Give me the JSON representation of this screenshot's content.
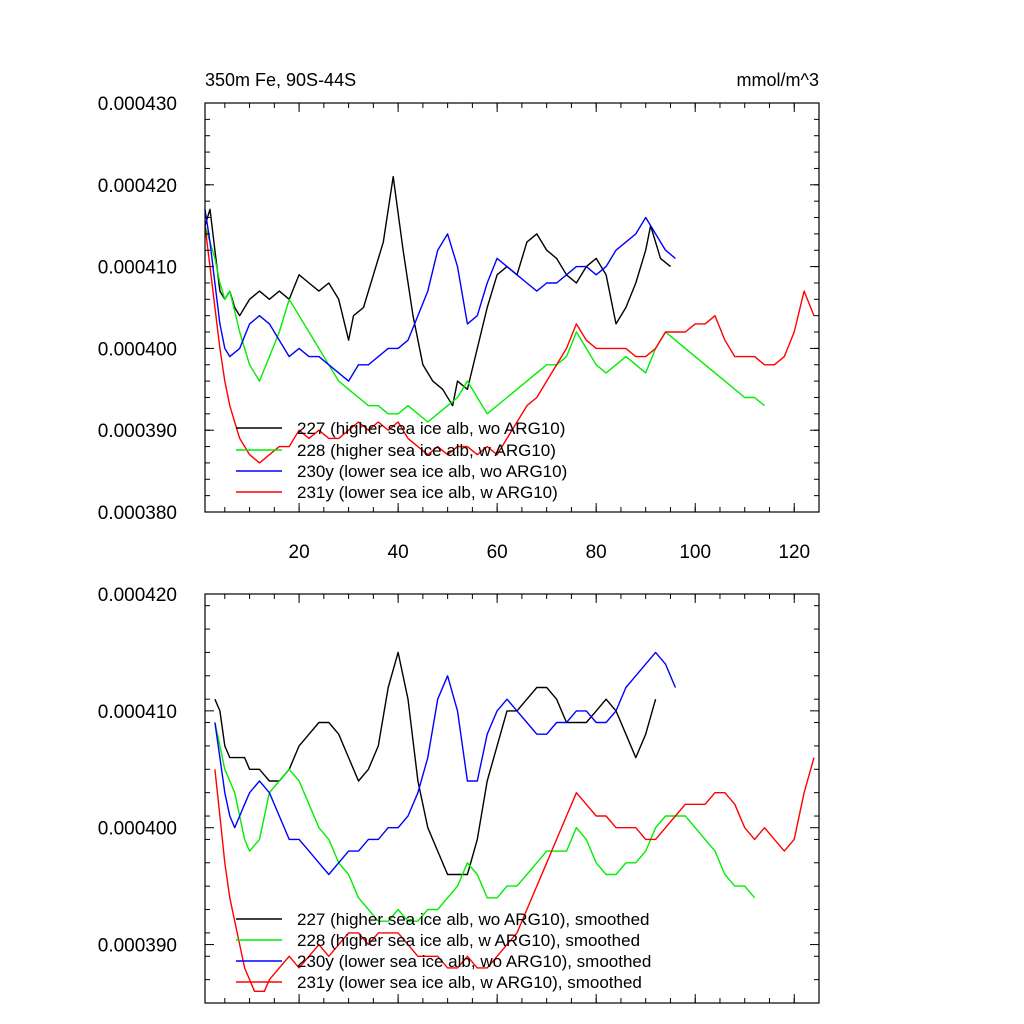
{
  "chart_data": [
    {
      "type": "line",
      "title": "350m Fe, 90S-44S",
      "units": "mmol/m^3",
      "xlim": [
        1,
        125
      ],
      "ylim": [
        0.00038,
        0.00043
      ],
      "xticks": [
        20,
        40,
        60,
        80,
        100,
        120
      ],
      "xtick_labels": [
        "20",
        "40",
        "60",
        "80",
        "100",
        "120"
      ],
      "yticks": [
        0.00038,
        0.00039,
        0.0004,
        0.00041,
        0.00042,
        0.00043
      ],
      "ytick_labels": [
        "0.000380",
        "0.000390",
        "0.000400",
        "0.000410",
        "0.000420",
        "0.000430"
      ],
      "legend_position": "bottom-left",
      "grid": false,
      "series": [
        {
          "name": "227 (higher sea ice alb, wo ARG10)",
          "color": "#000000",
          "x": [
            1,
            2,
            3,
            4,
            5,
            6,
            7,
            8,
            9,
            10,
            12,
            14,
            16,
            18,
            20,
            22,
            24,
            26,
            28,
            30,
            31,
            33,
            35,
            37,
            39,
            41,
            43,
            45,
            47,
            49,
            51,
            52,
            54,
            56,
            58,
            60,
            62,
            64,
            66,
            68,
            70,
            72,
            74,
            76,
            78,
            80,
            82,
            84,
            86,
            88,
            90,
            91,
            93,
            95
          ],
          "y": [
            0.000415,
            0.000417,
            0.000412,
            0.000407,
            0.000406,
            0.000407,
            0.000405,
            0.000404,
            0.000405,
            0.000406,
            0.000407,
            0.000406,
            0.000407,
            0.000406,
            0.000409,
            0.000408,
            0.000407,
            0.000408,
            0.000406,
            0.000401,
            0.000404,
            0.000405,
            0.000409,
            0.000413,
            0.000421,
            0.000412,
            0.000404,
            0.000398,
            0.000396,
            0.000395,
            0.000393,
            0.000396,
            0.000395,
            0.0004,
            0.000405,
            0.000409,
            0.00041,
            0.000409,
            0.000413,
            0.000414,
            0.000412,
            0.000411,
            0.000409,
            0.000408,
            0.00041,
            0.000411,
            0.000409,
            0.000403,
            0.000405,
            0.000408,
            0.000412,
            0.000415,
            0.000411,
            0.00041
          ]
        },
        {
          "name": "228 (higher sea ice alb, w ARG10)",
          "color": "#00ee00",
          "x": [
            1,
            2,
            3,
            4,
            5,
            6,
            8,
            10,
            12,
            14,
            16,
            18,
            20,
            22,
            24,
            26,
            28,
            30,
            32,
            34,
            36,
            38,
            40,
            42,
            44,
            46,
            48,
            50,
            52,
            54,
            56,
            58,
            60,
            62,
            64,
            66,
            68,
            70,
            72,
            74,
            76,
            78,
            80,
            82,
            84,
            86,
            88,
            90,
            92,
            94,
            96,
            98,
            100,
            102,
            104,
            106,
            108,
            110,
            112,
            114
          ],
          "y": [
            0.000415,
            0.000413,
            0.000411,
            0.000408,
            0.000406,
            0.000407,
            0.000402,
            0.000398,
            0.000396,
            0.000399,
            0.000402,
            0.000406,
            0.000404,
            0.000402,
            0.0004,
            0.000398,
            0.000396,
            0.000395,
            0.000394,
            0.000393,
            0.000393,
            0.000392,
            0.000392,
            0.000393,
            0.000392,
            0.000391,
            0.000392,
            0.000393,
            0.000394,
            0.000396,
            0.000394,
            0.000392,
            0.000393,
            0.000394,
            0.000395,
            0.000396,
            0.000397,
            0.000398,
            0.000398,
            0.000399,
            0.000402,
            0.0004,
            0.000398,
            0.000397,
            0.000398,
            0.000399,
            0.000398,
            0.000397,
            0.0004,
            0.000402,
            0.000401,
            0.0004,
            0.000399,
            0.000398,
            0.000397,
            0.000396,
            0.000395,
            0.000394,
            0.000394,
            0.000393
          ]
        },
        {
          "name": "230y (lower sea ice alb, wo ARG10)",
          "color": "#0000ff",
          "x": [
            1,
            2,
            3,
            4,
            5,
            6,
            8,
            10,
            12,
            14,
            16,
            18,
            20,
            22,
            24,
            26,
            28,
            30,
            32,
            34,
            36,
            38,
            40,
            42,
            44,
            46,
            48,
            50,
            52,
            54,
            56,
            58,
            60,
            62,
            64,
            66,
            68,
            70,
            72,
            74,
            76,
            78,
            80,
            82,
            84,
            86,
            88,
            90,
            92,
            94,
            96
          ],
          "y": [
            0.000417,
            0.000413,
            0.000408,
            0.000403,
            0.0004,
            0.000399,
            0.0004,
            0.000403,
            0.000404,
            0.000403,
            0.000401,
            0.000399,
            0.0004,
            0.000399,
            0.000399,
            0.000398,
            0.000397,
            0.000396,
            0.000398,
            0.000398,
            0.000399,
            0.0004,
            0.0004,
            0.000401,
            0.000404,
            0.000407,
            0.000412,
            0.000414,
            0.00041,
            0.000403,
            0.000404,
            0.000408,
            0.000411,
            0.00041,
            0.000409,
            0.000408,
            0.000407,
            0.000408,
            0.000408,
            0.000409,
            0.00041,
            0.00041,
            0.000409,
            0.00041,
            0.000412,
            0.000413,
            0.000414,
            0.000416,
            0.000414,
            0.000412,
            0.000411
          ]
        },
        {
          "name": "231y (lower sea ice alb, w ARG10)",
          "color": "#ff0000",
          "x": [
            1,
            2,
            3,
            4,
            5,
            6,
            7,
            8,
            10,
            12,
            14,
            16,
            18,
            20,
            22,
            24,
            26,
            28,
            30,
            32,
            34,
            36,
            38,
            40,
            42,
            44,
            46,
            48,
            50,
            52,
            54,
            56,
            58,
            60,
            62,
            64,
            66,
            68,
            70,
            72,
            74,
            76,
            78,
            80,
            82,
            84,
            86,
            88,
            90,
            92,
            94,
            96,
            98,
            100,
            102,
            104,
            106,
            108,
            110,
            112,
            114,
            116,
            118,
            120,
            122,
            124
          ],
          "y": [
            0.000415,
            0.00041,
            0.000405,
            0.0004,
            0.000396,
            0.000393,
            0.000391,
            0.000389,
            0.000387,
            0.000386,
            0.000387,
            0.000388,
            0.000388,
            0.00039,
            0.000389,
            0.00039,
            0.000389,
            0.000389,
            0.00039,
            0.000391,
            0.00039,
            0.000391,
            0.00039,
            0.000391,
            0.000389,
            0.000388,
            0.000387,
            0.000388,
            0.000387,
            0.000388,
            0.000388,
            0.000387,
            0.000388,
            0.000387,
            0.000389,
            0.000391,
            0.000393,
            0.000394,
            0.000396,
            0.000398,
            0.0004,
            0.000403,
            0.000401,
            0.0004,
            0.0004,
            0.0004,
            0.0004,
            0.000399,
            0.000399,
            0.0004,
            0.000402,
            0.000402,
            0.000402,
            0.000403,
            0.000403,
            0.000404,
            0.000401,
            0.000399,
            0.000399,
            0.000399,
            0.000398,
            0.000398,
            0.000399,
            0.000402,
            0.000407,
            0.000404
          ]
        }
      ]
    },
    {
      "type": "line",
      "title": "",
      "xlim": [
        1,
        125
      ],
      "ylim": [
        0.000385,
        0.00042
      ],
      "xticks": [
        20,
        40,
        60,
        80,
        100,
        120
      ],
      "yticks": [
        0.00039,
        0.0004,
        0.00041,
        0.00042
      ],
      "ytick_labels": [
        "0.000390",
        "0.000400",
        "0.000410",
        "0.000420"
      ],
      "legend_position": "bottom-left",
      "grid": false,
      "series": [
        {
          "name": "227 (higher sea ice alb, wo ARG10), smoothed",
          "color": "#000000",
          "x": [
            3,
            4,
            5,
            6,
            7,
            8,
            9,
            10,
            12,
            14,
            16,
            18,
            20,
            22,
            24,
            26,
            28,
            30,
            32,
            34,
            36,
            38,
            40,
            42,
            44,
            46,
            48,
            50,
            52,
            54,
            56,
            58,
            60,
            62,
            64,
            66,
            68,
            70,
            72,
            74,
            76,
            78,
            80,
            82,
            84,
            86,
            88,
            90,
            92
          ],
          "y": [
            0.000411,
            0.00041,
            0.000407,
            0.000406,
            0.000406,
            0.000406,
            0.000406,
            0.000405,
            0.000405,
            0.000404,
            0.000404,
            0.000405,
            0.000407,
            0.000408,
            0.000409,
            0.000409,
            0.000408,
            0.000406,
            0.000404,
            0.000405,
            0.000407,
            0.000412,
            0.000415,
            0.000411,
            0.000404,
            0.0004,
            0.000398,
            0.000396,
            0.000396,
            0.000396,
            0.000399,
            0.000404,
            0.000407,
            0.00041,
            0.00041,
            0.000411,
            0.000412,
            0.000412,
            0.000411,
            0.000409,
            0.000409,
            0.000409,
            0.00041,
            0.000411,
            0.00041,
            0.000408,
            0.000406,
            0.000408,
            0.000411
          ]
        },
        {
          "name": "228 (higher sea ice alb, w ARG10), smoothed",
          "color": "#00ee00",
          "x": [
            3,
            4,
            5,
            6,
            7,
            8,
            9,
            10,
            12,
            14,
            16,
            18,
            20,
            22,
            24,
            26,
            28,
            30,
            32,
            34,
            36,
            38,
            40,
            42,
            44,
            46,
            48,
            50,
            52,
            54,
            56,
            58,
            60,
            62,
            64,
            66,
            68,
            70,
            72,
            74,
            76,
            78,
            80,
            82,
            84,
            86,
            88,
            90,
            92,
            94,
            96,
            98,
            100,
            102,
            104,
            106,
            108,
            110,
            112
          ],
          "y": [
            0.000409,
            0.000407,
            0.000405,
            0.000404,
            0.000403,
            0.000401,
            0.000399,
            0.000398,
            0.000399,
            0.000403,
            0.000404,
            0.000405,
            0.000404,
            0.000402,
            0.0004,
            0.000399,
            0.000397,
            0.000396,
            0.000394,
            0.000393,
            0.000392,
            0.000392,
            0.000393,
            0.000392,
            0.000392,
            0.000393,
            0.000393,
            0.000394,
            0.000395,
            0.000397,
            0.000396,
            0.000394,
            0.000394,
            0.000395,
            0.000395,
            0.000396,
            0.000397,
            0.000398,
            0.000398,
            0.000398,
            0.0004,
            0.000399,
            0.000397,
            0.000396,
            0.000396,
            0.000397,
            0.000397,
            0.000398,
            0.0004,
            0.000401,
            0.000401,
            0.000401,
            0.0004,
            0.000399,
            0.000398,
            0.000396,
            0.000395,
            0.000395,
            0.000394
          ]
        },
        {
          "name": "230y (lower sea ice alb, wo ARG10), smoothed",
          "color": "#0000ff",
          "x": [
            3,
            4,
            5,
            6,
            7,
            8,
            9,
            10,
            12,
            14,
            16,
            18,
            20,
            22,
            24,
            26,
            28,
            30,
            32,
            34,
            36,
            38,
            40,
            42,
            44,
            46,
            48,
            50,
            52,
            54,
            56,
            58,
            60,
            62,
            64,
            66,
            68,
            70,
            72,
            74,
            76,
            78,
            80,
            82,
            84,
            86,
            88,
            90,
            92,
            94,
            96
          ],
          "y": [
            0.000409,
            0.000406,
            0.000403,
            0.000401,
            0.0004,
            0.000401,
            0.000402,
            0.000403,
            0.000404,
            0.000403,
            0.000401,
            0.000399,
            0.000399,
            0.000398,
            0.000397,
            0.000396,
            0.000397,
            0.000398,
            0.000398,
            0.000399,
            0.000399,
            0.0004,
            0.0004,
            0.000401,
            0.000403,
            0.000406,
            0.000411,
            0.000413,
            0.00041,
            0.000404,
            0.000404,
            0.000408,
            0.00041,
            0.000411,
            0.00041,
            0.000409,
            0.000408,
            0.000408,
            0.000409,
            0.000409,
            0.00041,
            0.00041,
            0.000409,
            0.000409,
            0.00041,
            0.000412,
            0.000413,
            0.000414,
            0.000415,
            0.000414,
            0.000412
          ]
        },
        {
          "name": "231y (lower sea ice alb, w ARG10), smoothed",
          "color": "#ff0000",
          "x": [
            3,
            4,
            5,
            6,
            7,
            8,
            9,
            10,
            11,
            12,
            13,
            14,
            16,
            18,
            20,
            22,
            24,
            26,
            28,
            30,
            32,
            34,
            36,
            38,
            40,
            42,
            44,
            46,
            48,
            50,
            52,
            54,
            56,
            58,
            60,
            62,
            64,
            66,
            68,
            70,
            72,
            74,
            76,
            78,
            80,
            82,
            84,
            86,
            88,
            90,
            92,
            94,
            96,
            98,
            100,
            102,
            104,
            106,
            108,
            110,
            112,
            114,
            116,
            118,
            120,
            122,
            124
          ],
          "y": [
            0.000405,
            0.000401,
            0.000397,
            0.000394,
            0.000392,
            0.00039,
            0.000388,
            0.000387,
            0.000386,
            0.000386,
            0.000386,
            0.000387,
            0.000388,
            0.000389,
            0.000388,
            0.000389,
            0.00039,
            0.000389,
            0.00039,
            0.000391,
            0.000391,
            0.00039,
            0.000391,
            0.000391,
            0.000391,
            0.00039,
            0.000389,
            0.000389,
            0.000389,
            0.000388,
            0.000388,
            0.000389,
            0.000388,
            0.000388,
            0.000389,
            0.00039,
            0.000391,
            0.000393,
            0.000395,
            0.000397,
            0.000399,
            0.000401,
            0.000403,
            0.000402,
            0.000401,
            0.000401,
            0.0004,
            0.0004,
            0.0004,
            0.000399,
            0.000399,
            0.0004,
            0.000401,
            0.000402,
            0.000402,
            0.000402,
            0.000403,
            0.000403,
            0.000402,
            0.0004,
            0.000399,
            0.0004,
            0.000399,
            0.000398,
            0.000399,
            0.000403,
            0.000406
          ]
        }
      ]
    }
  ]
}
